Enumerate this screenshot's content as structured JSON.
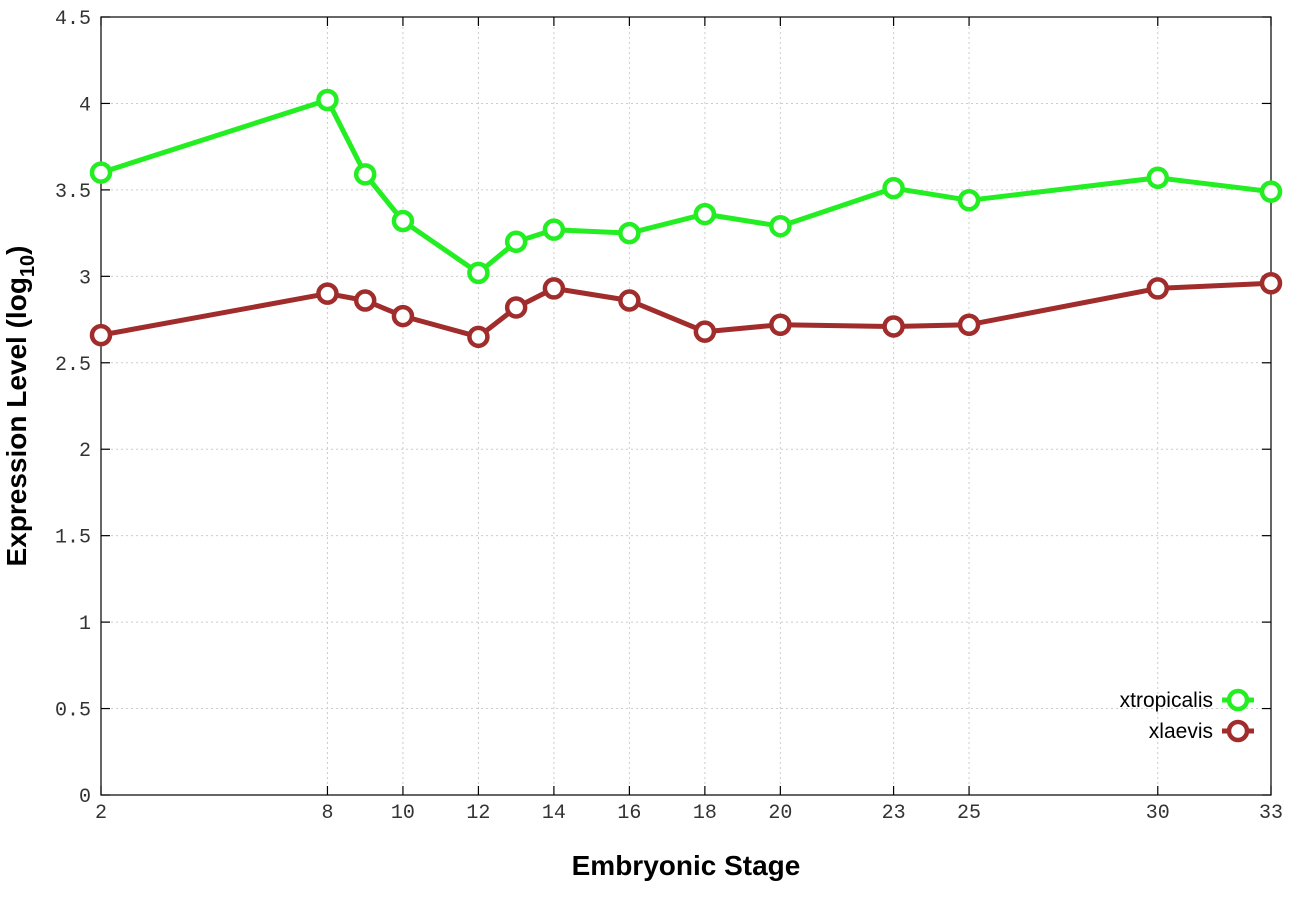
{
  "chart_data": {
    "type": "line",
    "xlabel": "Embryonic Stage",
    "ylabel_main": "Expression Level (log",
    "ylabel_sub": "10",
    "ylabel_close": ")",
    "x": [
      2,
      8,
      9,
      10,
      12,
      13,
      14,
      16,
      18,
      20,
      23,
      25,
      30,
      33
    ],
    "x_ticks": [
      2,
      8,
      10,
      12,
      14,
      16,
      18,
      20,
      23,
      25,
      30,
      33
    ],
    "y_ticks": [
      "0",
      "0.5",
      "1",
      "1.5",
      "2",
      "2.5",
      "3",
      "3.5",
      "4",
      "4.5"
    ],
    "xlim": [
      2,
      33
    ],
    "ylim": [
      0,
      4.5
    ],
    "grid": true,
    "legend_position": "bottom-right",
    "series": [
      {
        "name": "xtropicalis",
        "color": "#22ee22",
        "values": [
          3.6,
          4.02,
          3.59,
          3.32,
          3.02,
          3.2,
          3.27,
          3.25,
          3.36,
          3.29,
          3.51,
          3.44,
          3.57,
          3.49
        ]
      },
      {
        "name": "xlaevis",
        "color": "#a02c2c",
        "values": [
          2.66,
          2.9,
          2.86,
          2.77,
          2.65,
          2.82,
          2.93,
          2.86,
          2.68,
          2.72,
          2.71,
          2.72,
          2.93,
          2.96
        ]
      }
    ]
  }
}
